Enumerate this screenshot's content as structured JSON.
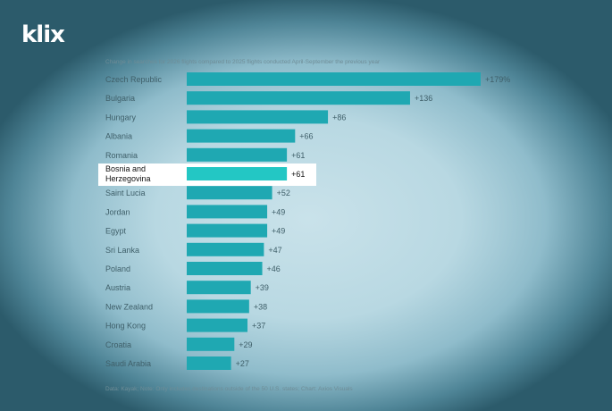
{
  "logo": "klix",
  "subtitle": "Change in searches for 2026 flights compared to 2025 flights conducted April-September the previous year",
  "footnote": "Data: Kayak; Note: Only includes destinations outside of the 50 U.S. states; Chart: Axios Visuals",
  "colors": {
    "bar": "#1fa8b2",
    "highlight_bar": "#23c7c4",
    "highlight_bg": "#ffffff"
  },
  "chart_data": {
    "type": "bar",
    "orientation": "horizontal",
    "categories": [
      "Czech Republic",
      "Bulgaria",
      "Hungary",
      "Albania",
      "Romania",
      "Bosnia and Herzegovina",
      "Saint Lucia",
      "Jordan",
      "Egypt",
      "Sri Lanka",
      "Poland",
      "Austria",
      "New Zealand",
      "Hong Kong",
      "Croatia",
      "Saudi Arabia"
    ],
    "values": [
      179,
      136,
      86,
      66,
      61,
      61,
      52,
      49,
      49,
      47,
      46,
      39,
      38,
      37,
      29,
      27
    ],
    "labels": [
      "+179%",
      "+136",
      "+86",
      "+66",
      "+61",
      "+61",
      "+52",
      "+49",
      "+49",
      "+47",
      "+46",
      "+39",
      "+38",
      "+37",
      "+29",
      "+27"
    ],
    "highlight": "Bosnia and Herzegovina",
    "xlim": [
      0,
      179
    ]
  }
}
